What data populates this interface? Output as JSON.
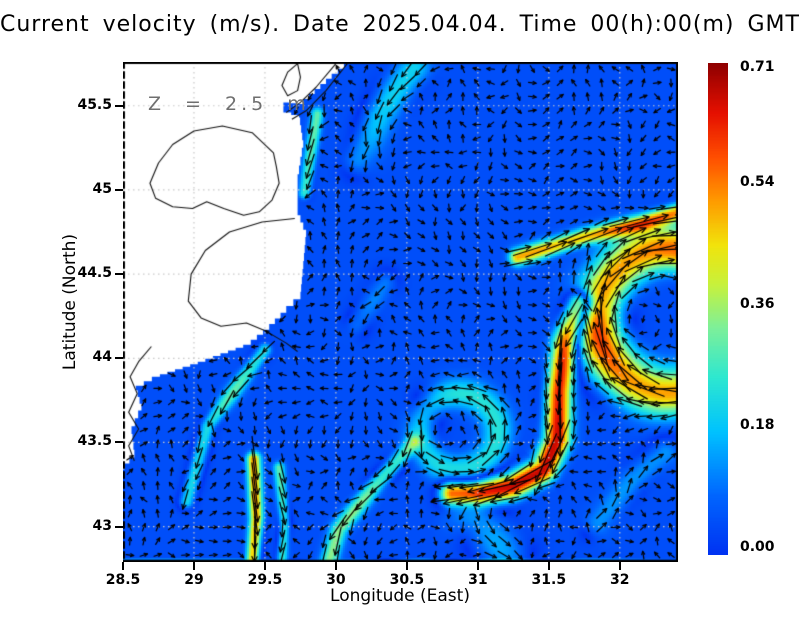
{
  "title": "Current velocity (m/s). Date 2025.04.04. Time 00(h):00(m) GMT",
  "annotation": {
    "depth_label": "Z = 2.5 m"
  },
  "axes": {
    "xlabel": "Longitude (East)",
    "ylabel": "Latitude (North)",
    "x_ticks": [
      {
        "label": "28.5",
        "value": 28.5
      },
      {
        "label": "29",
        "value": 29
      },
      {
        "label": "29.5",
        "value": 29.5
      },
      {
        "label": "30",
        "value": 30
      },
      {
        "label": "30.5",
        "value": 30.5
      },
      {
        "label": "31",
        "value": 31
      },
      {
        "label": "31.5",
        "value": 31.5
      },
      {
        "label": "32",
        "value": 32
      }
    ],
    "y_ticks": [
      {
        "label": "45.5",
        "value": 45.5
      },
      {
        "label": "45",
        "value": 45
      },
      {
        "label": "44.5",
        "value": 44.5
      },
      {
        "label": "44",
        "value": 44
      },
      {
        "label": "43.5",
        "value": 43.5
      },
      {
        "label": "43",
        "value": 43
      }
    ]
  },
  "colorbar": {
    "min": 0.0,
    "max": 0.71,
    "units": "m/s",
    "position": "right",
    "ticks": [
      {
        "label": "0.71",
        "value": 0.71
      },
      {
        "label": "0.54",
        "value": 0.54
      },
      {
        "label": "0.36",
        "value": 0.36
      },
      {
        "label": "0.18",
        "value": 0.18
      },
      {
        "label": "0.00",
        "value": 0.0
      }
    ]
  },
  "chart_data": {
    "type": "heatmap",
    "overlay": "quiver-vector-field",
    "title": "Current velocity (m/s). Date 2025.04.04. Time 00(h):00(m) GMT",
    "date": "2025.04.04",
    "time": "00(h):00(m) GMT",
    "depth_m": 2.5,
    "units": "m/s",
    "xlabel": "Longitude (East)",
    "ylabel": "Latitude (North)",
    "xlim": [
      28.5,
      32.41
    ],
    "ylim": [
      42.79,
      45.76
    ],
    "x_ticks": [
      28.5,
      29,
      29.5,
      30,
      30.5,
      31,
      31.5,
      32
    ],
    "y_ticks": [
      43,
      43.5,
      44,
      44.5,
      45,
      45.5
    ],
    "grid": true,
    "colormap_stops": [
      [
        0.0,
        0,
        51,
        242
      ],
      [
        0.12,
        0,
        102,
        255
      ],
      [
        0.25,
        0,
        195,
        255
      ],
      [
        0.36,
        46,
        232,
        209
      ],
      [
        0.46,
        125,
        240,
        155
      ],
      [
        0.55,
        200,
        242,
        60
      ],
      [
        0.63,
        242,
        228,
        12
      ],
      [
        0.72,
        255,
        155,
        0
      ],
      [
        0.81,
        255,
        78,
        0
      ],
      [
        0.9,
        229,
        16,
        0
      ],
      [
        1.0,
        143,
        0,
        0
      ]
    ],
    "background_speed": 0.045,
    "bottom_edge_strip": {
      "peak": 0.15
    },
    "eddies": [
      {
        "lon": 32.34,
        "lat": 44.22,
        "ring_radius": 0.5,
        "ring_width": 0.17,
        "peak": 0.55,
        "rotation": "clockwise"
      },
      {
        "lon": 30.87,
        "lat": 43.56,
        "ring_radius": 0.27,
        "ring_width": 0.11,
        "peak": 0.2,
        "rotation": "counterclockwise"
      }
    ],
    "jets": [
      {
        "name": "rim-current-meander",
        "peak": 0.62,
        "width": 0.09,
        "path": [
          [
            31.72,
            44.32
          ],
          [
            31.62,
            44.1
          ],
          [
            31.57,
            43.8
          ],
          [
            31.56,
            43.52
          ],
          [
            31.47,
            43.34
          ],
          [
            31.25,
            43.24
          ],
          [
            31.0,
            43.2
          ],
          [
            30.82,
            43.2
          ]
        ]
      },
      {
        "name": "northeast-diagonal-jet",
        "peak": 0.46,
        "width": 0.06,
        "path": [
          [
            31.28,
            44.6
          ],
          [
            31.75,
            44.72
          ],
          [
            32.15,
            44.8
          ],
          [
            32.45,
            44.88
          ]
        ]
      },
      {
        "name": "west-yellow-band",
        "peak": 0.5,
        "width": 0.05,
        "path": [
          [
            29.42,
            43.4
          ],
          [
            29.44,
            43.05
          ],
          [
            29.41,
            42.79
          ]
        ]
      },
      {
        "name": "west-green-band",
        "peak": 0.27,
        "width": 0.04,
        "path": [
          [
            29.6,
            43.35
          ],
          [
            29.64,
            43.0
          ],
          [
            29.62,
            42.79
          ]
        ]
      },
      {
        "name": "southwest-diagonal-band",
        "peak": 0.3,
        "width": 0.06,
        "path": [
          [
            30.55,
            43.5
          ],
          [
            30.25,
            43.22
          ],
          [
            30.02,
            42.98
          ],
          [
            29.95,
            42.79
          ]
        ]
      },
      {
        "name": "north-coastal-jet",
        "peak": 0.26,
        "width": 0.045,
        "path": [
          [
            29.87,
            45.45
          ],
          [
            29.82,
            45.2
          ],
          [
            29.78,
            44.98
          ]
        ]
      },
      {
        "name": "mid-coastal-jet",
        "peak": 0.26,
        "width": 0.055,
        "path": [
          [
            29.5,
            44.05
          ],
          [
            29.32,
            43.85
          ],
          [
            29.1,
            43.6
          ],
          [
            28.95,
            43.15
          ]
        ]
      },
      {
        "name": "south-cyan-patch",
        "peak": 0.17,
        "width": 0.17,
        "path": [
          [
            31.0,
            43.05
          ],
          [
            31.2,
            42.82
          ]
        ]
      },
      {
        "name": "faint-mid-streak",
        "peak": 0.13,
        "width": 0.09,
        "path": [
          [
            30.35,
            44.45
          ],
          [
            30.15,
            44.2
          ]
        ]
      },
      {
        "name": "top-coastal-drift",
        "peak": 0.16,
        "width": 0.12,
        "path": [
          [
            30.55,
            45.72
          ],
          [
            30.3,
            45.45
          ],
          [
            30.15,
            45.18
          ]
        ]
      },
      {
        "name": "southeast-cyan-arc",
        "peak": 0.17,
        "width": 0.11,
        "path": [
          [
            31.85,
            43.02
          ],
          [
            32.1,
            43.28
          ],
          [
            32.32,
            43.44
          ]
        ]
      }
    ],
    "land_polygon": [
      [
        30.1,
        45.75
      ],
      [
        29.97,
        45.66
      ],
      [
        29.77,
        45.51
      ],
      [
        29.67,
        45.52
      ],
      [
        29.63,
        45.46
      ],
      [
        29.74,
        45.43
      ],
      [
        29.77,
        45.25
      ],
      [
        29.73,
        45.04
      ],
      [
        29.73,
        44.85
      ],
      [
        29.79,
        44.72
      ],
      [
        29.77,
        44.53
      ],
      [
        29.75,
        44.35
      ],
      [
        29.65,
        44.27
      ],
      [
        29.53,
        44.17
      ],
      [
        29.4,
        44.08
      ],
      [
        29.08,
        43.98
      ],
      [
        28.76,
        43.89
      ],
      [
        28.59,
        43.81
      ],
      [
        28.63,
        43.69
      ],
      [
        28.56,
        43.55
      ],
      [
        28.58,
        43.41
      ],
      [
        28.51,
        43.34
      ],
      [
        28.5,
        43.34
      ]
    ],
    "coastlines": [
      {
        "closed": false,
        "points": [
          [
            30.0,
            45.75
          ],
          [
            29.86,
            45.61
          ],
          [
            29.75,
            45.52
          ],
          [
            29.65,
            45.46
          ]
        ]
      },
      {
        "closed": false,
        "points": [
          [
            30.08,
            45.75
          ],
          [
            29.93,
            45.59
          ],
          [
            29.79,
            45.47
          ],
          [
            29.69,
            45.42
          ]
        ]
      },
      {
        "closed": true,
        "points": [
          [
            29.73,
            45.75
          ],
          [
            29.66,
            45.7
          ],
          [
            29.62,
            45.62
          ],
          [
            29.66,
            45.56
          ],
          [
            29.73,
            45.59
          ],
          [
            29.75,
            45.67
          ]
        ]
      },
      {
        "closed": true,
        "points": [
          [
            29.56,
            45.22
          ],
          [
            29.41,
            45.34
          ],
          [
            29.2,
            45.38
          ],
          [
            29.0,
            45.35
          ],
          [
            28.85,
            45.27
          ],
          [
            28.75,
            45.16
          ],
          [
            28.69,
            45.04
          ],
          [
            28.73,
            44.95
          ],
          [
            28.85,
            44.9
          ],
          [
            28.99,
            44.89
          ],
          [
            29.09,
            44.93
          ],
          [
            29.21,
            44.89
          ],
          [
            29.35,
            44.85
          ],
          [
            29.46,
            44.87
          ],
          [
            29.55,
            44.94
          ],
          [
            29.6,
            45.04
          ],
          [
            29.58,
            45.14
          ]
        ]
      },
      {
        "closed": false,
        "points": [
          [
            29.71,
            44.83
          ],
          [
            29.48,
            44.81
          ],
          [
            29.25,
            44.75
          ],
          [
            29.08,
            44.64
          ],
          [
            28.98,
            44.5
          ],
          [
            28.96,
            44.34
          ],
          [
            29.05,
            44.24
          ],
          [
            29.19,
            44.19
          ],
          [
            29.37,
            44.21
          ],
          [
            29.51,
            44.16
          ],
          [
            29.65,
            44.09
          ],
          [
            29.73,
            44.04
          ]
        ]
      },
      {
        "closed": false,
        "points": [
          [
            28.7,
            44.07
          ],
          [
            28.61,
            43.98
          ],
          [
            28.55,
            43.89
          ],
          [
            28.6,
            43.79
          ],
          [
            28.54,
            43.68
          ],
          [
            28.61,
            43.58
          ],
          [
            28.54,
            43.48
          ],
          [
            28.58,
            43.39
          ]
        ]
      }
    ]
  }
}
